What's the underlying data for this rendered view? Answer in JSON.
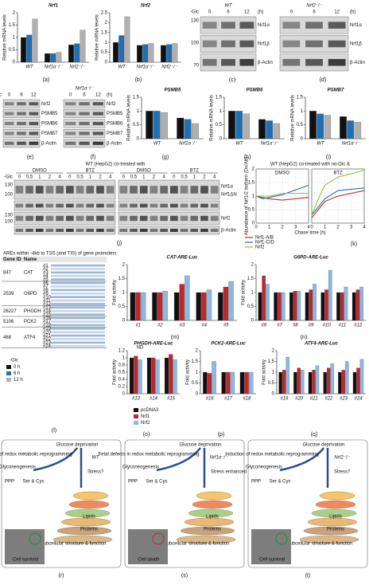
{
  "legends": {
    "glc": {
      "title": "-Glc",
      "items": [
        {
          "name": "0 h",
          "color": "#111111"
        },
        {
          "name": "6 h",
          "color": "#1f6fb5"
        },
        {
          "name": "12 h",
          "color": "#b0b0b0"
        }
      ]
    },
    "luc": {
      "items": [
        {
          "name": "pcDNA3",
          "color": "#111111"
        },
        {
          "name": "Nrf1",
          "color": "#c0272d"
        },
        {
          "name": "Nrf2",
          "color": "#8fb8de"
        }
      ]
    }
  },
  "bar_charts": [
    {
      "type": "bar",
      "label": "(a)",
      "title": "Nrf1",
      "ylabel": "Relative mRNA levels",
      "categories": [
        "WT",
        "Nrf1α⁻/⁻",
        "Nrf2⁻/⁻"
      ],
      "ylim": [
        0,
        2
      ],
      "yticks": [
        0,
        0.5,
        1,
        1.5,
        2
      ],
      "series": [
        {
          "color": "#111111",
          "values": [
            1.0,
            0.35,
            0.7
          ]
        },
        {
          "color": "#1f6fb5",
          "values": [
            1.1,
            0.35,
            0.75
          ]
        },
        {
          "color": "#b0b0b0",
          "values": [
            1.75,
            0.4,
            1.3
          ]
        }
      ]
    },
    {
      "type": "bar",
      "label": "(b)",
      "title": "Nrf2",
      "ylabel": "Relative mRNA levels",
      "categories": [
        "WT",
        "Nrf1α⁻/⁻",
        "Nrf2⁻/⁻"
      ],
      "ylim": [
        0,
        2.5
      ],
      "yticks": [
        0,
        0.5,
        1,
        1.5,
        2,
        2.5
      ],
      "series": [
        {
          "color": "#111111",
          "values": [
            1.0,
            0.85,
            0.85
          ]
        },
        {
          "color": "#1f6fb5",
          "values": [
            1.35,
            0.9,
            0.9
          ]
        },
        {
          "color": "#b0b0b0",
          "values": [
            2.3,
            0.95,
            0.95
          ]
        }
      ]
    },
    {
      "type": "bar",
      "label": "(g)",
      "title": "PSMB5",
      "ylabel": "Relative mRNA levels",
      "categories": [
        "WT",
        "Nrf1α⁻/⁻"
      ],
      "ylim": [
        0,
        1.5
      ],
      "yticks": [
        0,
        0.5,
        1,
        1.5
      ],
      "series": [
        {
          "color": "#111111",
          "values": [
            1.0,
            0.75
          ]
        },
        {
          "color": "#1f6fb5",
          "values": [
            1.0,
            0.7
          ]
        },
        {
          "color": "#b0b0b0",
          "values": [
            0.95,
            0.55
          ]
        }
      ]
    },
    {
      "type": "bar",
      "label": "(h)",
      "title": "PSMB6",
      "ylabel": "Relative mRNA levels",
      "categories": [
        "WT",
        "Nrf1α⁻/⁻"
      ],
      "ylim": [
        0,
        1.5
      ],
      "yticks": [
        0,
        0.5,
        1,
        1.5
      ],
      "series": [
        {
          "color": "#111111",
          "values": [
            1.0,
            0.7
          ]
        },
        {
          "color": "#1f6fb5",
          "values": [
            1.0,
            0.65
          ]
        },
        {
          "color": "#b0b0b0",
          "values": [
            0.9,
            0.55
          ]
        }
      ]
    },
    {
      "type": "bar",
      "label": "(i)",
      "title": "PSMB7",
      "ylabel": "Relative mRNA levels",
      "categories": [
        "WT",
        "Nrf1α⁻/⁻"
      ],
      "ylim": [
        0,
        1.5
      ],
      "yticks": [
        0,
        0.5,
        1,
        1.5
      ],
      "series": [
        {
          "color": "#111111",
          "values": [
            1.0,
            0.8
          ]
        },
        {
          "color": "#1f6fb5",
          "values": [
            0.9,
            0.65
          ]
        },
        {
          "color": "#b0b0b0",
          "values": [
            0.85,
            0.6
          ]
        }
      ]
    },
    {
      "type": "bar",
      "label": "(m)",
      "title": "CAT-ARE-Luc",
      "ylabel": "Fold activity",
      "categories": [
        "#1",
        "#2",
        "#3",
        "#4",
        "#5"
      ],
      "ylim": [
        0,
        2
      ],
      "yticks": [
        0,
        0.5,
        1,
        1.5,
        2
      ],
      "series": [
        {
          "color": "#111111",
          "values": [
            1,
            1,
            1,
            1,
            1
          ]
        },
        {
          "color": "#c0272d",
          "values": [
            1.0,
            1.0,
            1.3,
            1.0,
            1.2
          ]
        },
        {
          "color": "#8fb8de",
          "values": [
            1.0,
            1.05,
            1.6,
            1.1,
            1.4
          ]
        }
      ]
    },
    {
      "type": "bar",
      "label": "(n)",
      "title": "G6PD-ARE-Luc",
      "ylabel": "Fold activity",
      "categories": [
        "#6",
        "#7",
        "#8",
        "#9",
        "#10",
        "#11",
        "#12"
      ],
      "ylim": [
        0,
        2
      ],
      "yticks": [
        0,
        0.5,
        1,
        1.5,
        2
      ],
      "series": [
        {
          "color": "#111111",
          "values": [
            1,
            1,
            1,
            1,
            1,
            1,
            1
          ]
        },
        {
          "color": "#c0272d",
          "values": [
            1.6,
            1.0,
            1.05,
            1.1,
            1.1,
            1.0,
            1.1
          ]
        },
        {
          "color": "#8fb8de",
          "values": [
            1.3,
            1.0,
            1.05,
            1.3,
            1.8,
            1.2,
            1.2
          ]
        }
      ]
    },
    {
      "type": "bar",
      "label": "(o)",
      "title": "PHGDH-ARE-Luc",
      "annotation": "ND",
      "ylabel": "Fold activity",
      "categories": [
        "#13",
        "#14",
        "#15"
      ],
      "ylim": [
        0,
        1.2
      ],
      "yticks": [
        0,
        0.2,
        0.4,
        0.6,
        0.8,
        1,
        1.2
      ],
      "series": [
        {
          "color": "#111111",
          "values": [
            1,
            1,
            1
          ]
        },
        {
          "color": "#c0272d",
          "values": [
            1.05,
            1.0,
            1.1
          ]
        },
        {
          "color": "#8fb8de",
          "values": [
            0.95,
            0.95,
            0.95
          ]
        }
      ]
    },
    {
      "type": "bar",
      "label": "(p)",
      "title": "PCK2-ARE-Luc",
      "ylabel": "Fold activity",
      "categories": [
        "#16",
        "#17",
        "#18"
      ],
      "ylim": [
        0,
        2
      ],
      "yticks": [
        0,
        0.5,
        1,
        1.5,
        2
      ],
      "series": [
        {
          "color": "#111111",
          "values": [
            1,
            1,
            1
          ]
        },
        {
          "color": "#c0272d",
          "values": [
            0.95,
            1.0,
            1.0
          ]
        },
        {
          "color": "#8fb8de",
          "values": [
            1.5,
            1.0,
            1.0
          ]
        }
      ]
    },
    {
      "type": "bar",
      "label": "(q)",
      "title": "ATF4-ARE-Luc",
      "ylabel": "Fold activity",
      "categories": [
        "#19",
        "#20",
        "#21",
        "#22",
        "#23",
        "#24"
      ],
      "ylim": [
        0,
        2
      ],
      "yticks": [
        0,
        0.5,
        1,
        1.5,
        2
      ],
      "series": [
        {
          "color": "#111111",
          "values": [
            1,
            1,
            1,
            1,
            1,
            1
          ]
        },
        {
          "color": "#c0272d",
          "values": [
            1.1,
            1.2,
            1.1,
            1.2,
            1.1,
            1.2
          ]
        },
        {
          "color": "#8fb8de",
          "values": [
            1.7,
            1.1,
            1.3,
            1.4,
            1.5,
            1.6
          ]
        }
      ]
    }
  ],
  "blots": [
    {
      "label": "(c)",
      "condition": "-Glc",
      "genotype": "WT",
      "times": [
        "0",
        "6",
        "12"
      ],
      "unit": "(h)",
      "markers": [
        "130",
        "100",
        "70"
      ],
      "bands": [
        "Nrf1α",
        "Nrf1β",
        "β-Actin"
      ]
    },
    {
      "label": "(d)",
      "genotype": "Nrf2⁻/⁻",
      "times": [
        "0",
        "6",
        "12"
      ],
      "unit": "(h)",
      "bands": [
        "Nrf1α",
        "Nrf1β",
        "β-Actin"
      ]
    },
    {
      "label": "(e)",
      "condition": "-Glc",
      "times": [
        "0",
        "6",
        "12"
      ],
      "bands": [
        "Nrf2",
        "PSMB5",
        "PSMB6",
        "PSMB7",
        "β-Actin"
      ]
    },
    {
      "label": "(f)",
      "genotype": "Nrf1α⁻/⁻",
      "times": [
        "0",
        "6",
        "12"
      ],
      "unit": "(h)",
      "bands": [
        "Nrf2",
        "PSMB5",
        "PSMB6",
        "PSMB7",
        "β-Actin"
      ]
    }
  ],
  "chase_blot": {
    "label": "(j)",
    "title": "WT (HepG2) co-treated with",
    "condition": "-Glc",
    "treatments": [
      "DMSO",
      "BTZ",
      "DMSO",
      "BTZ"
    ],
    "times": [
      "0",
      "0.5",
      "1",
      "2",
      "4"
    ],
    "markers": [
      "130",
      "100",
      "130",
      "100"
    ],
    "bands": [
      "Nrf1α",
      "Nrf1ΔN",
      "Nrf2",
      "β-Actin"
    ]
  },
  "line_chart": {
    "type": "line",
    "label": "(k)",
    "title": "WT (HepG2) co-treated with no-Glc &",
    "ylabel": "Abundance of Nrf1/2 isoform (Dx/Ab)",
    "xlabel": "Chase time (h)",
    "x": [
      0,
      0.5,
      1,
      2,
      4
    ],
    "xlim": [
      0,
      4
    ],
    "xticks": [
      0,
      1,
      2,
      3,
      4
    ],
    "ylim": [
      0,
      2
    ],
    "yticks": [
      0,
      0.5,
      1,
      1.5,
      2
    ],
    "grid": true,
    "series": [
      {
        "name": "Nrf1-A/B",
        "color": "#c0272d"
      },
      {
        "name": "Nrf1-C/D",
        "color": "#1f6fb5"
      },
      {
        "name": "Nrf2",
        "color": "#8cc63f"
      }
    ],
    "panels": [
      {
        "title": "DMSO",
        "values": [
          [
            1.0,
            0.95,
            0.9,
            0.85,
            0.95
          ],
          [
            1.0,
            0.9,
            0.95,
            1.05,
            1.4
          ],
          [
            1.0,
            1.0,
            1.0,
            1.1,
            1.1
          ]
        ]
      },
      {
        "title": "BTZ",
        "values": [
          [
            0.2,
            0.5,
            0.8,
            1.0,
            1.2
          ],
          [
            0.3,
            0.6,
            0.9,
            1.2,
            1.3
          ],
          [
            0.3,
            0.9,
            1.4,
            1.7,
            1.95
          ]
        ]
      }
    ]
  },
  "table": {
    "label": "(l)",
    "title": "AREs within -4kb to TSS (and TIS) of gene promoters",
    "header": [
      "Gene ID",
      "Name"
    ],
    "rows": [
      {
        "gene_id": "847",
        "name": "CAT",
        "sites": [
          "#1",
          "#2",
          "#3",
          "#4",
          "#5"
        ]
      },
      {
        "gene_id": "2539",
        "name": "G6PD",
        "sites": [
          "#6",
          "#7",
          "#8",
          "#9",
          "#10",
          "#11",
          "#12"
        ]
      },
      {
        "gene_id": "26227",
        "name": "PHGDH",
        "sites": [
          "#13",
          "#14",
          "#15"
        ]
      },
      {
        "gene_id": "5106",
        "name": "PCK2",
        "sites": [
          "#16",
          "#17",
          "#18"
        ]
      },
      {
        "gene_id": "468",
        "name": "ATF4",
        "sites": [
          "#19",
          "#20",
          "#21",
          "#22",
          "#23",
          "#24"
        ]
      }
    ]
  },
  "diagrams": [
    {
      "label": "(r)",
      "trigger": "Glucose deprivation",
      "program": "Induction of redox metabolic reprogramming",
      "genotype": "WT",
      "stress": "Stress?",
      "nodes": [
        "Glyconeogenesis",
        "PPP",
        "Ser & Cys",
        "Lipids",
        "Proteins",
        "Subcellular structure & function"
      ],
      "outcome": "Cell survival"
    },
    {
      "label": "(s)",
      "trigger": "Glucose deprivation",
      "program": "Fetal defects in redox metabolic reprogramming",
      "genotype": "Nrf1α⁻/⁻",
      "stress": "Stress enhanced",
      "nodes": [
        "Glyconeogenesis",
        "PPP",
        "Ser & Cys",
        "Lipids",
        "Proteins",
        "Subcellular structure & function"
      ],
      "outcome": "Cell death"
    },
    {
      "label": "(t)",
      "trigger": "Glucose deprivation",
      "program": "Induction of redox metabolic reprogramming",
      "genotype": "Nrf2⁻/⁻",
      "stress": "Stress?",
      "nodes": [
        "Glyconeogenesis",
        "PPP",
        "Ser & Cys",
        "Lipids",
        "Proteins",
        "Subcellular structure & function"
      ],
      "outcome": "Cell survival"
    }
  ]
}
